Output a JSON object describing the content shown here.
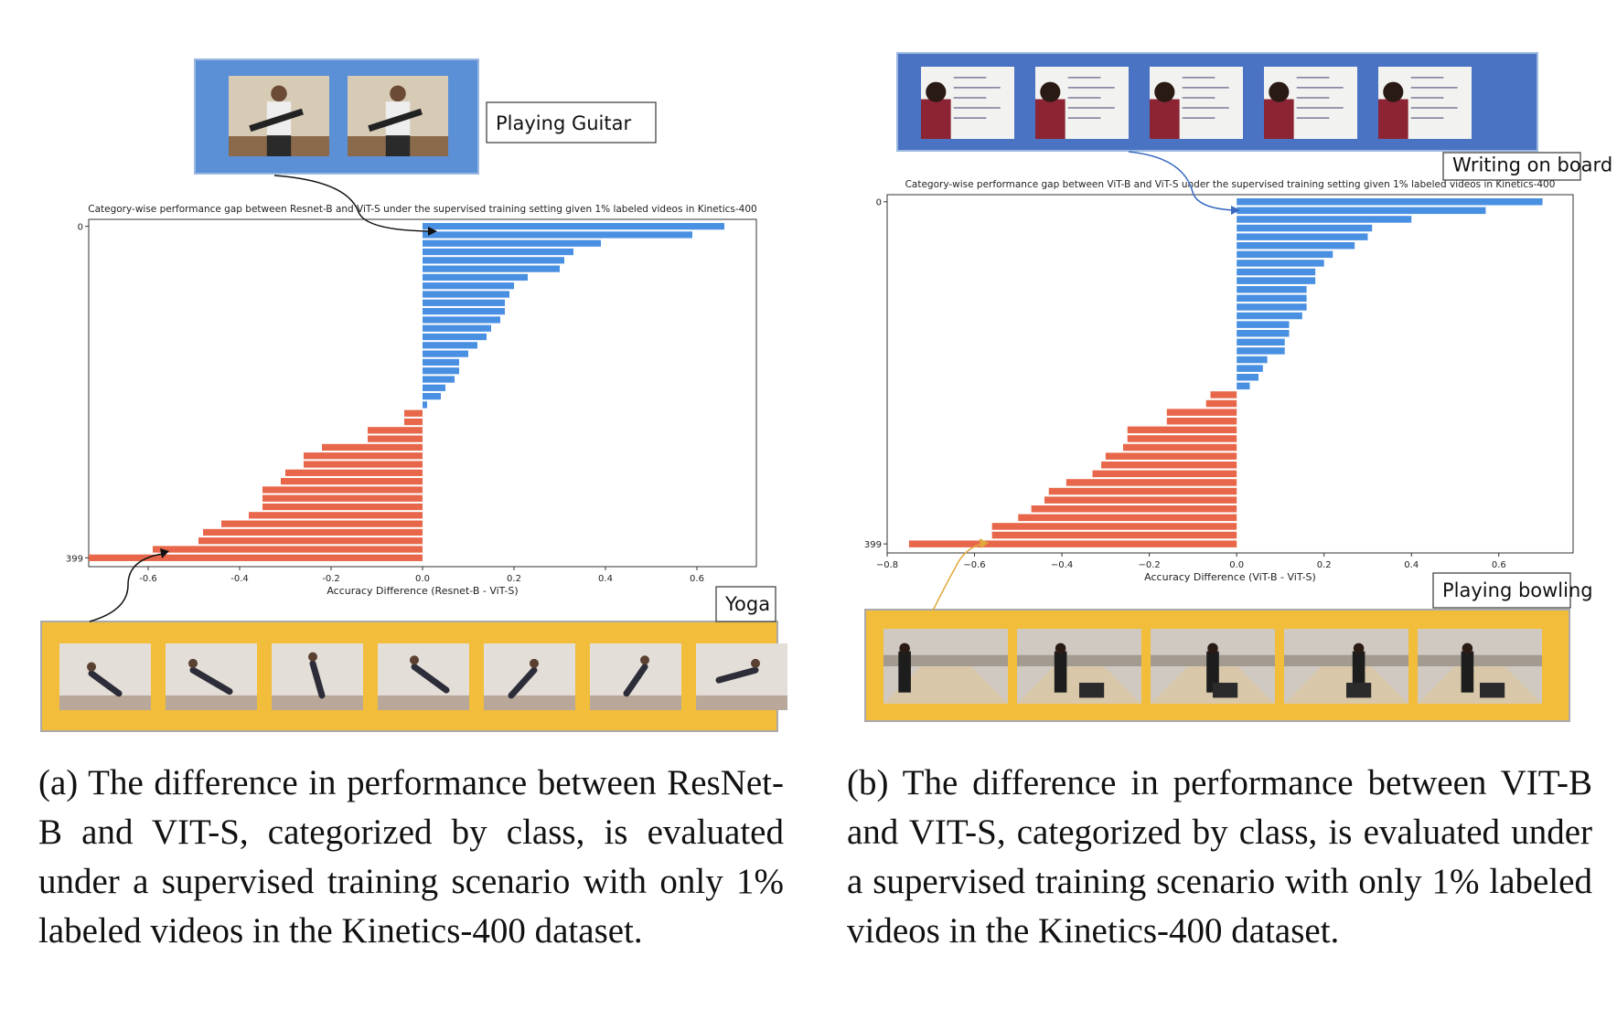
{
  "chart_data": [
    {
      "type": "bar",
      "orientation": "horizontal",
      "title": "Category-wise performance gap between Resnet-B and ViT-S under the supervised training setting given 1% labeled videos in Kinetics-400",
      "xlabel": "Accuracy Difference (Resnet-B - ViT-S)",
      "ylabel": "",
      "xlim": [
        -0.73,
        0.73
      ],
      "x_ticks": [
        "-0.6",
        "-0.4",
        "-0.2",
        "0.0",
        "0.2",
        "0.4",
        "0.6"
      ],
      "y_ticks": [
        "0",
        "399"
      ],
      "colors": {
        "positive": "#4a90e2",
        "negative": "#e8674a"
      },
      "values": [
        0.66,
        0.59,
        0.39,
        0.33,
        0.31,
        0.3,
        0.23,
        0.2,
        0.19,
        0.18,
        0.18,
        0.17,
        0.15,
        0.14,
        0.12,
        0.1,
        0.08,
        0.08,
        0.07,
        0.05,
        0.04,
        0.01,
        -0.04,
        -0.04,
        -0.12,
        -0.12,
        -0.22,
        -0.26,
        -0.26,
        -0.3,
        -0.31,
        -0.35,
        -0.35,
        -0.35,
        -0.38,
        -0.44,
        -0.48,
        -0.49,
        -0.59,
        -0.73
      ],
      "annotations": {
        "top": "Playing Guitar",
        "bottom": "Yoga"
      },
      "frame_count_top": 2,
      "frame_count_bottom": 7
    },
    {
      "type": "bar",
      "orientation": "horizontal",
      "title": "Category-wise performance gap between ViT-B and ViT-S under the supervised training setting given 1% labeled videos in Kinetics-400",
      "xlabel": "Accuracy Difference (ViT-B - ViT-S)",
      "ylabel": "",
      "xlim": [
        -0.8,
        0.77
      ],
      "x_ticks": [
        "−0.8",
        "−0.6",
        "−0.4",
        "−0.2",
        "0.0",
        "0.2",
        "0.4",
        "0.6"
      ],
      "y_ticks": [
        "0",
        "399"
      ],
      "colors": {
        "positive": "#4a90e2",
        "negative": "#e8674a"
      },
      "values": [
        0.7,
        0.57,
        0.4,
        0.31,
        0.3,
        0.27,
        0.22,
        0.2,
        0.18,
        0.18,
        0.16,
        0.16,
        0.16,
        0.15,
        0.12,
        0.12,
        0.11,
        0.11,
        0.07,
        0.06,
        0.05,
        0.03,
        -0.06,
        -0.07,
        -0.16,
        -0.16,
        -0.25,
        -0.25,
        -0.26,
        -0.3,
        -0.31,
        -0.33,
        -0.39,
        -0.43,
        -0.44,
        -0.47,
        -0.5,
        -0.56,
        -0.56,
        -0.75
      ],
      "annotations": {
        "top": "Writing on board",
        "bottom": "Playing bowling"
      },
      "frame_count_top": 5,
      "frame_count_bottom": 5
    }
  ],
  "captions": [
    "(a) The difference in performance between ResNet-B and VIT-S, categorized by class, is evaluated under a supervised training scenario with only 1% labeled videos in the Kinetics-400 dataset.",
    "(b) The difference in performance between VIT-B and VIT-S, categorized by class, is evaluated under a supervised training scenario with only 1% labeled videos in the Kinetics-400 dataset."
  ],
  "colors": {
    "blue_frame": "#5b8fd6",
    "dark_blue_frame": "#4a73c4",
    "yellow_frame": "#f2bd3a"
  }
}
